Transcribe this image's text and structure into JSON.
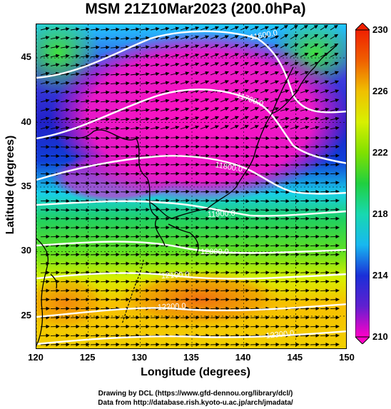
{
  "title": "MSM 21Z10Mar2023 (200.0hPa)",
  "xlabel": "Longitude (degrees)",
  "ylabel": "Latitude  (degrees)",
  "x_ticks": [
    "120",
    "125",
    "130",
    "135",
    "140",
    "145",
    "150"
  ],
  "y_ticks": [
    "25",
    "30",
    "35",
    "40",
    "45"
  ],
  "colorbar_ticks": [
    "230",
    "226",
    "222",
    "218",
    "214",
    "210"
  ],
  "contour_labels": [
    "11600.0",
    "11700.0",
    "11800.0",
    "11900.0",
    "12000.0",
    "12100.0",
    "12200.0",
    "12300.0"
  ],
  "footer": {
    "line1": "Drawing by DCL (https://www.gfd-dennou.org/library/dcl/)",
    "line2": "Data from http://database.rish.kyoto-u.ac.jp/arch/jmadata/"
  },
  "colors": {
    "c210": "#ff00c8",
    "c214": "#1a2fd8",
    "c218": "#18d8f0",
    "c222": "#20d040",
    "c226": "#d8f000",
    "c230": "#f02000",
    "contour": "#ffffff",
    "arrow": "#000000"
  },
  "chart_data": {
    "type": "heatmap",
    "title": "MSM 21Z10Mar2023 (200.0hPa)",
    "xlabel": "Longitude (degrees)",
    "ylabel": "Latitude  (degrees)",
    "xlim": [
      120,
      150
    ],
    "ylim": [
      22.4,
      47.6
    ],
    "colorbar_range": [
      210,
      230
    ],
    "colorbar_ticks": [
      210,
      214,
      218,
      222,
      226,
      230
    ],
    "contours": [
      {
        "label": "11600.0",
        "value": 11600
      },
      {
        "label": "11700.0",
        "value": 11700
      },
      {
        "label": "11800.0",
        "value": 11800
      },
      {
        "label": "11900.0",
        "value": 11900
      },
      {
        "label": "12000.0",
        "value": 12000
      },
      {
        "label": "12100.0",
        "value": 12100
      },
      {
        "label": "12200.0",
        "value": 12200
      },
      {
        "label": "12300.0",
        "value": 12300
      }
    ],
    "overlay": "wind vectors (arrows) and coastlines",
    "grid": true
  }
}
